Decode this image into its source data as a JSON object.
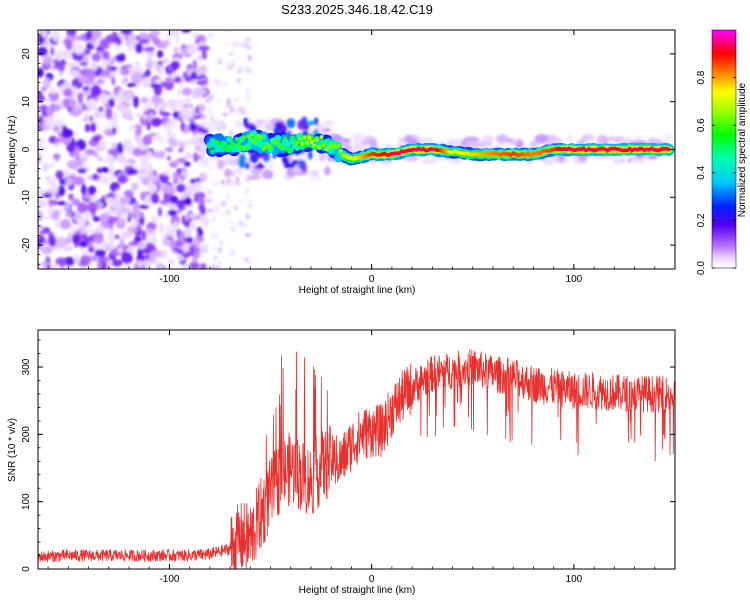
{
  "title": "S233.2025.346.18.42.C19",
  "chart_data": [
    {
      "type": "heatmap",
      "title": "S233.2025.346.18.42.C19",
      "xlabel": "Height of straight line (km)",
      "ylabel": "Frequency (Hz)",
      "xlim": [
        -165,
        150
      ],
      "ylim": [
        -25,
        25
      ],
      "xticks": [
        -100,
        0,
        100
      ],
      "xtick_labels": [
        "-100",
        "0",
        "100"
      ],
      "yticks": [
        -20,
        -10,
        0,
        10,
        20
      ],
      "ytick_labels": [
        "-20",
        "-10",
        "0",
        "10",
        "20"
      ],
      "colorbar": {
        "label": "Normalized spectral amplitude",
        "range": [
          0,
          1
        ],
        "ticks": [
          0.0,
          0.2,
          0.4,
          0.6,
          0.8
        ],
        "tick_labels": [
          "0.0",
          "0.2",
          "0.4",
          "0.6",
          "0.8"
        ],
        "colormap": "rainbow (white-purple-blue-cyan-green-yellow-red-magenta)"
      },
      "ridge": {
        "description": "dominant frequency track (strong signal)",
        "x": [
          -80,
          -70,
          -60,
          -50,
          -40,
          -30,
          -20,
          -15,
          -10,
          0,
          10,
          20,
          30,
          40,
          50,
          60,
          70,
          80,
          90,
          100,
          110,
          120,
          130,
          140,
          147
        ],
        "y": [
          1,
          1,
          2,
          1,
          1,
          2,
          1,
          -1,
          -2,
          -1,
          -1,
          0,
          0,
          -0.5,
          -1,
          -1,
          -1,
          -1,
          0,
          0,
          0,
          0,
          0,
          0,
          0
        ],
        "amplitude": [
          0.4,
          0.45,
          0.5,
          0.5,
          0.45,
          0.6,
          0.5,
          0.55,
          0.6,
          0.75,
          0.8,
          0.85,
          0.85,
          0.6,
          0.65,
          0.7,
          0.75,
          0.7,
          0.75,
          0.85,
          0.9,
          0.9,
          0.9,
          0.9,
          0.9
        ]
      }
    },
    {
      "type": "line",
      "xlabel": "Height of straight line (km)",
      "ylabel": "SNR (10 * v/v)",
      "xlim": [
        -165,
        150
      ],
      "ylim": [
        0,
        355
      ],
      "xticks": [
        -100,
        0,
        100
      ],
      "xtick_labels": [
        "-100",
        "0",
        "100"
      ],
      "yticks": [
        0,
        100,
        200,
        300
      ],
      "ytick_labels": [
        "0",
        "100",
        "200",
        "300"
      ],
      "color": "#e8312d",
      "series": [
        {
          "name": "SNR",
          "x": [
            -165,
            -150,
            -130,
            -110,
            -90,
            -80,
            -70,
            -65,
            -60,
            -55,
            -50,
            -45,
            -40,
            -35,
            -30,
            -25,
            -20,
            -15,
            -10,
            -5,
            0,
            5,
            10,
            15,
            20,
            25,
            30,
            40,
            50,
            60,
            70,
            80,
            90,
            100,
            110,
            120,
            130,
            140,
            150
          ],
          "y": [
            18,
            20,
            20,
            20,
            20,
            22,
            30,
            45,
            45,
            80,
            110,
            140,
            150,
            140,
            130,
            150,
            160,
            160,
            185,
            200,
            205,
            205,
            235,
            255,
            270,
            280,
            290,
            295,
            300,
            290,
            285,
            275,
            270,
            265,
            265,
            262,
            260,
            260,
            258
          ]
        }
      ]
    }
  ]
}
